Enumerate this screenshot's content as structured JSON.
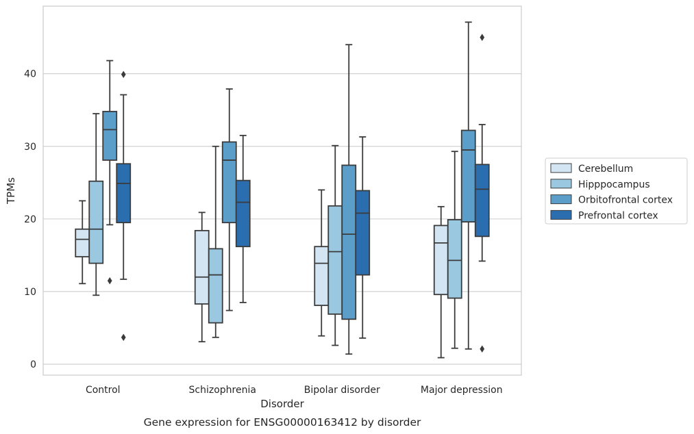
{
  "caption": "Gene expression for ENSG00000163412 by disorder",
  "chart_data": {
    "type": "box",
    "xlabel": "Disorder",
    "ylabel": "TPMs",
    "ylim": [
      -1.5,
      49.3
    ],
    "yticks": [
      "0",
      "10",
      "20",
      "30",
      "40"
    ],
    "categories": [
      "Control",
      "Schizophrenia",
      "Bipolar disorder",
      "Major depression"
    ],
    "grid": "horizontal",
    "legend_position": "right",
    "series": [
      {
        "name": "Cerebellum",
        "color": "#d3e4f3",
        "boxes": [
          {
            "whislo": 11.1,
            "q1": 14.8,
            "med": 17.2,
            "q3": 18.6,
            "whishi": 22.5,
            "fliers": []
          },
          {
            "whislo": 3.1,
            "q1": 8.3,
            "med": 12.0,
            "q3": 18.4,
            "whishi": 20.9,
            "fliers": []
          },
          {
            "whislo": 3.9,
            "q1": 8.1,
            "med": 13.9,
            "q3": 16.2,
            "whishi": 24.0,
            "fliers": []
          },
          {
            "whislo": 0.9,
            "q1": 9.6,
            "med": 16.7,
            "q3": 19.1,
            "whishi": 21.7,
            "fliers": []
          }
        ]
      },
      {
        "name": "Hipppocampus",
        "color": "#9ac8e0",
        "boxes": [
          {
            "whislo": 9.5,
            "q1": 13.9,
            "med": 18.6,
            "q3": 25.2,
            "whishi": 34.5,
            "fliers": []
          },
          {
            "whislo": 3.7,
            "q1": 5.7,
            "med": 12.3,
            "q3": 15.9,
            "whishi": 30.0,
            "fliers": []
          },
          {
            "whislo": 2.6,
            "q1": 6.9,
            "med": 15.5,
            "q3": 21.8,
            "whishi": 30.1,
            "fliers": []
          },
          {
            "whislo": 2.2,
            "q1": 9.1,
            "med": 14.3,
            "q3": 19.9,
            "whishi": 29.3,
            "fliers": []
          }
        ]
      },
      {
        "name": "Orbitofrontal cortex",
        "color": "#5a9ec9",
        "boxes": [
          {
            "whislo": 19.2,
            "q1": 28.1,
            "med": 32.3,
            "q3": 34.8,
            "whishi": 41.8,
            "fliers": [
              11.5
            ]
          },
          {
            "whislo": 7.4,
            "q1": 19.5,
            "med": 28.1,
            "q3": 30.6,
            "whishi": 37.9,
            "fliers": []
          },
          {
            "whislo": 1.4,
            "q1": 6.2,
            "med": 17.9,
            "q3": 27.4,
            "whishi": 44.0,
            "fliers": []
          },
          {
            "whislo": 2.1,
            "q1": 19.6,
            "med": 29.5,
            "q3": 32.2,
            "whishi": 47.1,
            "fliers": []
          }
        ]
      },
      {
        "name": "Prefrontal cortex",
        "color": "#2b6eb0",
        "boxes": [
          {
            "whislo": 11.7,
            "q1": 19.5,
            "med": 24.9,
            "q3": 27.6,
            "whishi": 37.1,
            "fliers": [
              39.9,
              3.7
            ]
          },
          {
            "whislo": 8.5,
            "q1": 16.2,
            "med": 22.3,
            "q3": 25.3,
            "whishi": 31.5,
            "fliers": []
          },
          {
            "whislo": 3.6,
            "q1": 12.3,
            "med": 20.8,
            "q3": 23.9,
            "whishi": 31.3,
            "fliers": []
          },
          {
            "whislo": 14.2,
            "q1": 17.6,
            "med": 24.1,
            "q3": 27.5,
            "whishi": 33.0,
            "fliers": [
              45.0,
              2.1
            ]
          }
        ]
      }
    ]
  }
}
